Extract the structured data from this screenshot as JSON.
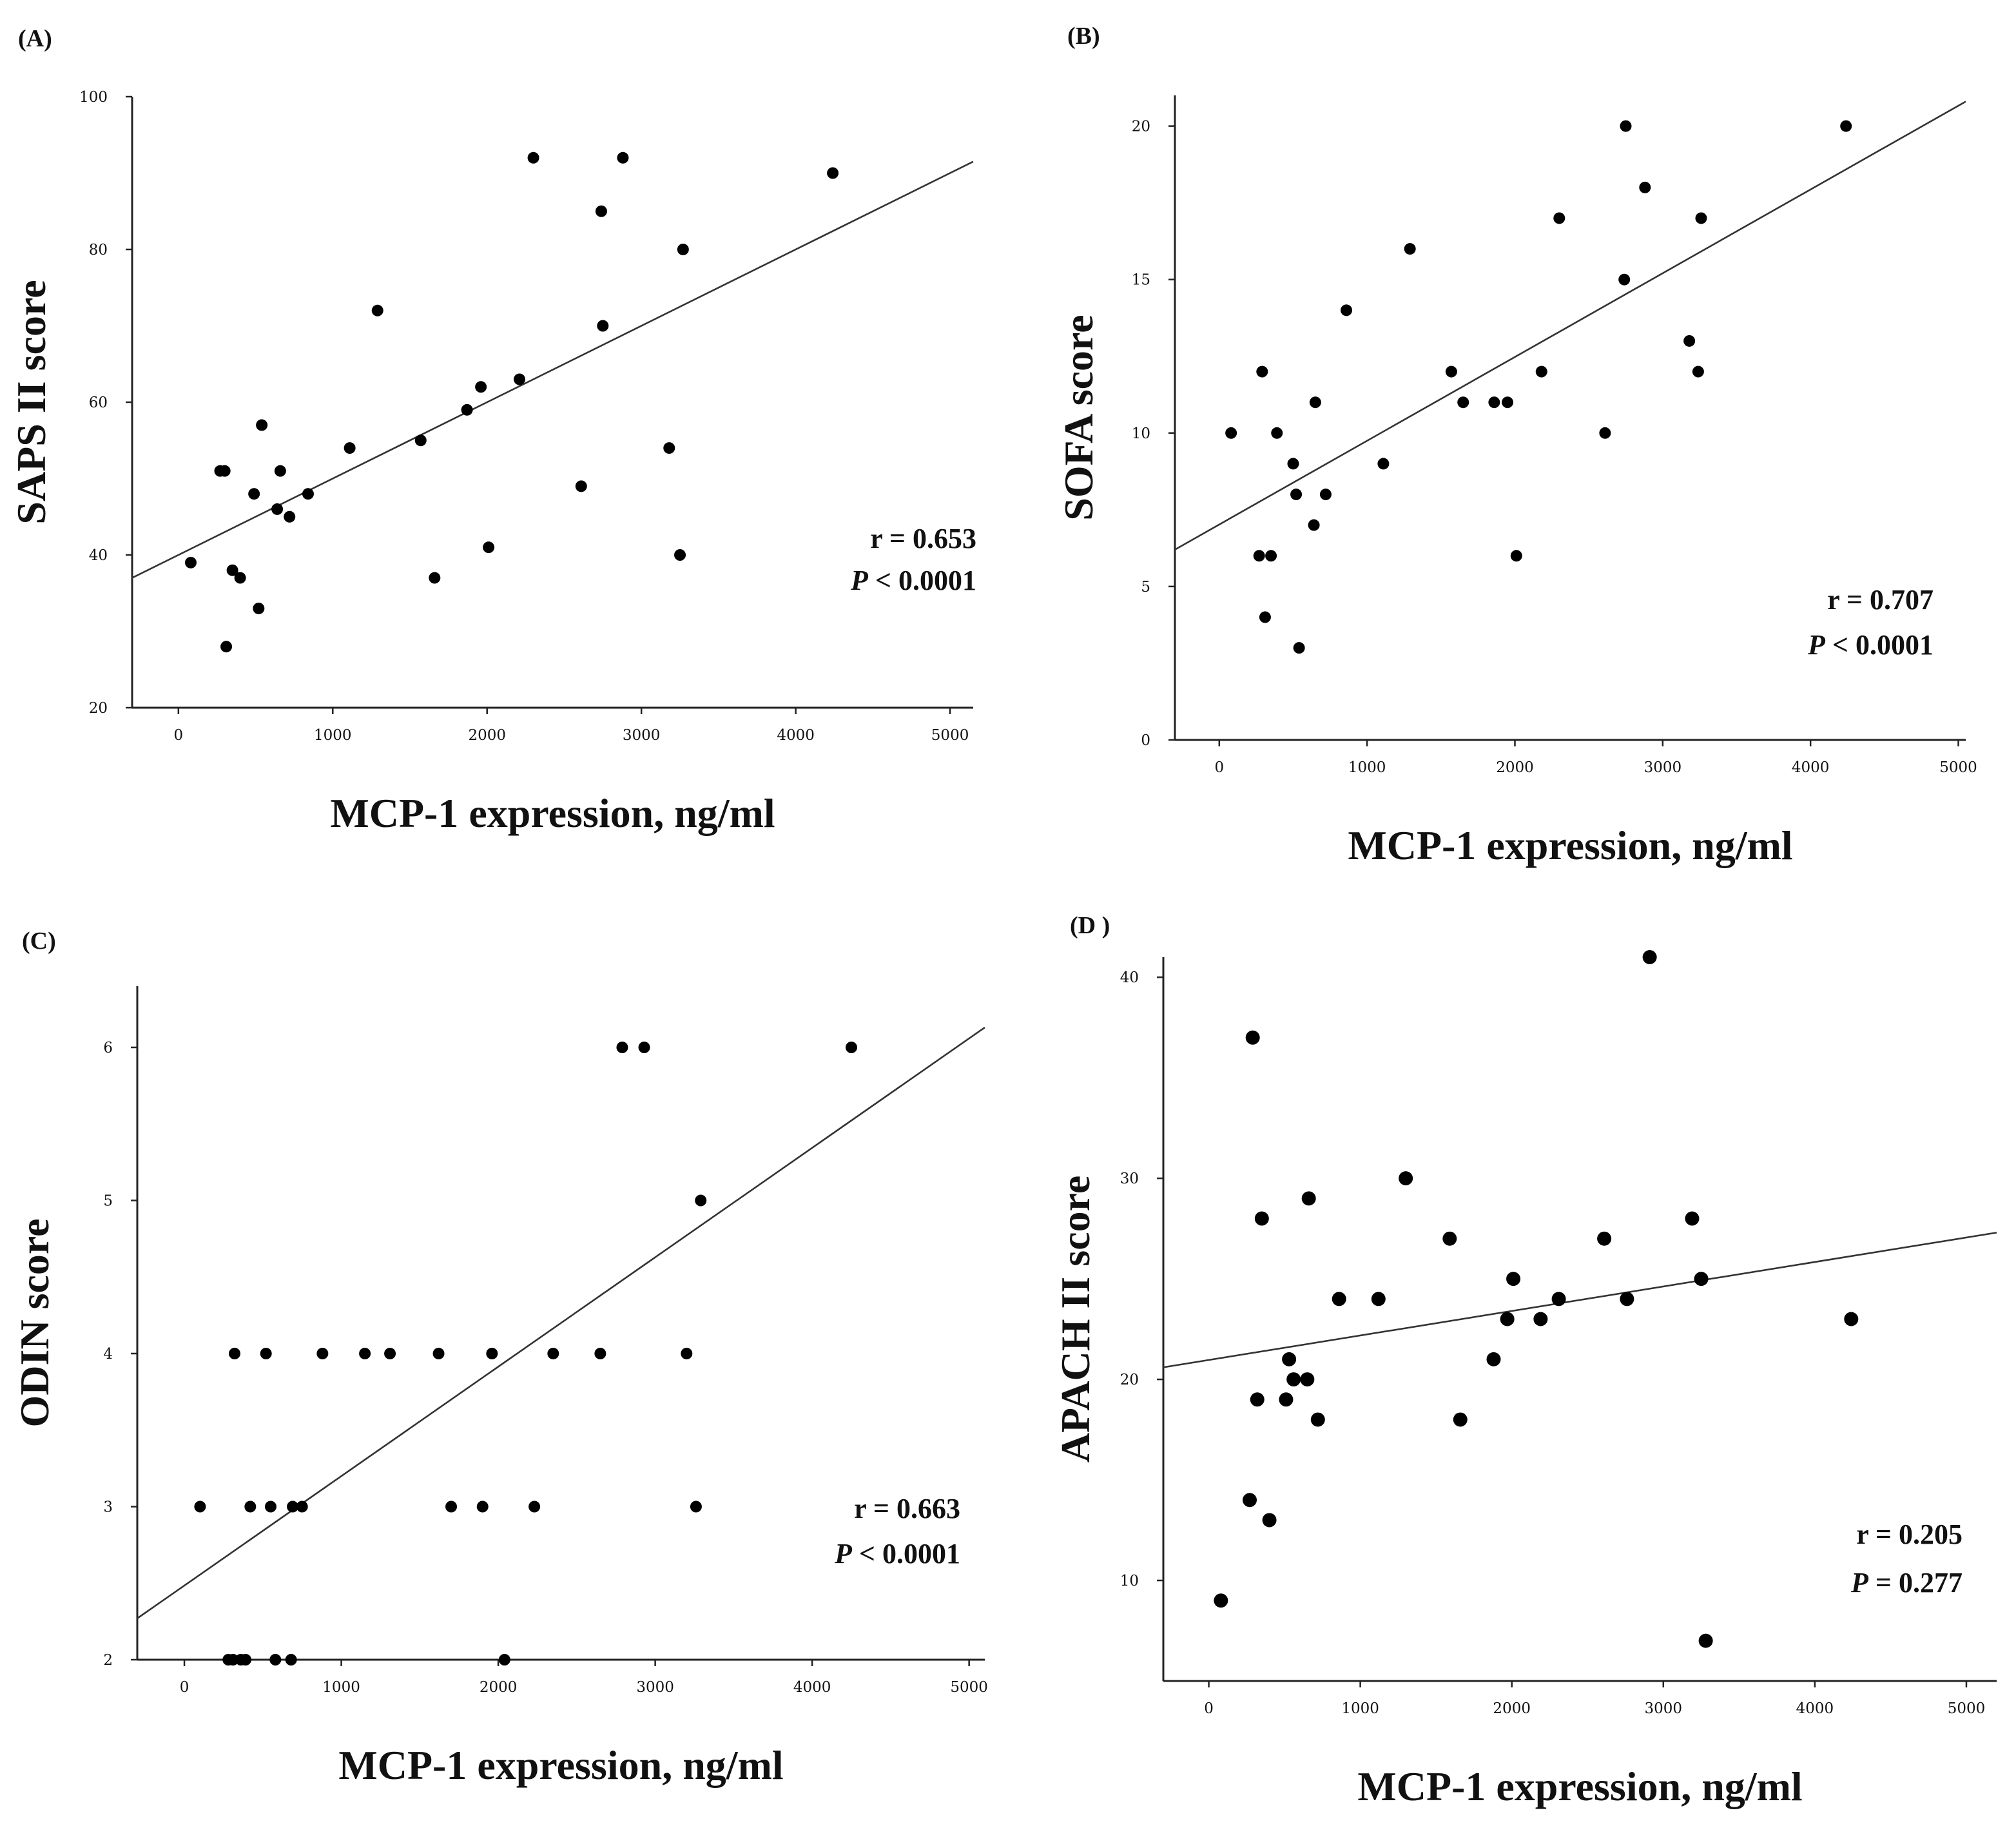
{
  "chart_data": [
    {
      "panel": "(A)",
      "type": "scatter",
      "xlabel": "MCP-1 expression, ng/ml",
      "ylabel": "SAPS II score",
      "xlim": [
        -300,
        5150
      ],
      "ylim": [
        20,
        100
      ],
      "xticks": [
        0,
        1000,
        2000,
        3000,
        4000,
        5000
      ],
      "yticks": [
        20,
        40,
        60,
        80,
        100
      ],
      "regression": {
        "x": [
          -300,
          5150
        ],
        "y": [
          37,
          91.5
        ]
      },
      "stat_r": "r = 0.653",
      "stat_p_sym": "P",
      "stat_p_val": " < 0.0001",
      "points": [
        [
          80,
          39
        ],
        [
          270,
          51
        ],
        [
          300,
          51
        ],
        [
          310,
          28
        ],
        [
          350,
          38
        ],
        [
          400,
          37
        ],
        [
          490,
          48
        ],
        [
          520,
          33
        ],
        [
          540,
          57
        ],
        [
          640,
          46
        ],
        [
          660,
          51
        ],
        [
          720,
          45
        ],
        [
          840,
          48
        ],
        [
          1110,
          54
        ],
        [
          1290,
          72
        ],
        [
          1570,
          55
        ],
        [
          1660,
          37
        ],
        [
          1870,
          59
        ],
        [
          1960,
          62
        ],
        [
          2010,
          41
        ],
        [
          2210,
          63
        ],
        [
          2300,
          92
        ],
        [
          2610,
          49
        ],
        [
          2740,
          85
        ],
        [
          2750,
          70
        ],
        [
          2880,
          92
        ],
        [
          3180,
          54
        ],
        [
          3250,
          40
        ],
        [
          3270,
          80
        ],
        [
          4240,
          90
        ]
      ]
    },
    {
      "panel": "(B)",
      "type": "scatter",
      "xlabel": "MCP-1 expression, ng/ml",
      "ylabel": "SOFA score",
      "xlim": [
        -300,
        5050
      ],
      "ylim": [
        0,
        21
      ],
      "xticks": [
        0,
        1000,
        2000,
        3000,
        4000,
        5000
      ],
      "yticks": [
        0,
        5,
        10,
        15,
        20
      ],
      "regression": {
        "x": [
          -300,
          5050
        ],
        "y": [
          6.2,
          20.8
        ]
      },
      "stat_r": "r = 0.707",
      "stat_p_sym": "P",
      "stat_p_val": " < 0.0001",
      "points": [
        [
          80,
          10
        ],
        [
          270,
          6
        ],
        [
          290,
          12
        ],
        [
          310,
          4
        ],
        [
          350,
          6
        ],
        [
          390,
          10
        ],
        [
          500,
          9
        ],
        [
          520,
          8
        ],
        [
          540,
          3
        ],
        [
          640,
          7
        ],
        [
          650,
          11
        ],
        [
          720,
          8
        ],
        [
          860,
          14
        ],
        [
          1110,
          9
        ],
        [
          1290,
          16
        ],
        [
          1570,
          12
        ],
        [
          1650,
          11
        ],
        [
          1860,
          11
        ],
        [
          1950,
          11
        ],
        [
          2010,
          6
        ],
        [
          2180,
          12
        ],
        [
          2300,
          17
        ],
        [
          2610,
          10
        ],
        [
          2740,
          15
        ],
        [
          2750,
          20
        ],
        [
          2880,
          18
        ],
        [
          3180,
          13
        ],
        [
          3240,
          12
        ],
        [
          3260,
          17
        ],
        [
          4240,
          20
        ]
      ]
    },
    {
      "panel": "(C)",
      "type": "scatter",
      "xlabel": "MCP-1 expression, ng/ml",
      "ylabel": "ODIN score",
      "xlim": [
        -300,
        5100
      ],
      "ylim": [
        2,
        6.4
      ],
      "xticks": [
        0,
        1000,
        2000,
        3000,
        4000,
        5000
      ],
      "yticks": [
        2,
        3,
        4,
        5,
        6
      ],
      "regression": {
        "x": [
          -300,
          5100
        ],
        "y": [
          2.27,
          6.13
        ]
      },
      "stat_r": "r = 0.663",
      "stat_p_sym": "P",
      "stat_p_val": " < 0.0001",
      "points": [
        [
          100,
          3
        ],
        [
          280,
          2
        ],
        [
          310,
          2
        ],
        [
          320,
          4
        ],
        [
          360,
          2
        ],
        [
          390,
          2
        ],
        [
          420,
          3
        ],
        [
          520,
          4
        ],
        [
          550,
          3
        ],
        [
          580,
          2
        ],
        [
          680,
          2
        ],
        [
          690,
          3
        ],
        [
          750,
          3
        ],
        [
          880,
          4
        ],
        [
          1150,
          4
        ],
        [
          1310,
          4
        ],
        [
          1620,
          4
        ],
        [
          1700,
          3
        ],
        [
          1900,
          3
        ],
        [
          1960,
          4
        ],
        [
          2040,
          2
        ],
        [
          2230,
          3
        ],
        [
          2350,
          4
        ],
        [
          2650,
          4
        ],
        [
          2790,
          6
        ],
        [
          2930,
          6
        ],
        [
          3200,
          4
        ],
        [
          3260,
          3
        ],
        [
          3290,
          5
        ],
        [
          4250,
          6
        ]
      ]
    },
    {
      "panel": "(D )",
      "type": "scatter",
      "xlabel": "MCP-1 expression, ng/ml",
      "ylabel": "APACH II score",
      "xlim": [
        -300,
        5200
      ],
      "ylim": [
        5,
        41
      ],
      "xticks": [
        0,
        1000,
        2000,
        3000,
        4000,
        5000
      ],
      "yticks": [
        10,
        20,
        30,
        40
      ],
      "regression": {
        "x": [
          -300,
          5200
        ],
        "y": [
          20.6,
          27.3
        ]
      },
      "stat_r": "r = 0.205",
      "stat_p_sym": "P",
      "stat_p_val": " = 0.277",
      "points": [
        [
          80,
          9
        ],
        [
          270,
          14
        ],
        [
          290,
          37
        ],
        [
          320,
          19
        ],
        [
          350,
          28
        ],
        [
          400,
          13
        ],
        [
          510,
          19
        ],
        [
          530,
          21
        ],
        [
          560,
          20
        ],
        [
          650,
          20
        ],
        [
          660,
          29
        ],
        [
          720,
          18
        ],
        [
          860,
          24
        ],
        [
          1120,
          24
        ],
        [
          1300,
          30
        ],
        [
          1590,
          27
        ],
        [
          1660,
          18
        ],
        [
          1880,
          21
        ],
        [
          1970,
          23
        ],
        [
          2010,
          25
        ],
        [
          2190,
          23
        ],
        [
          2310,
          24
        ],
        [
          2610,
          27
        ],
        [
          2760,
          24
        ],
        [
          2910,
          41
        ],
        [
          3190,
          28
        ],
        [
          3250,
          25
        ],
        [
          3280,
          7
        ],
        [
          4240,
          23
        ]
      ]
    }
  ]
}
